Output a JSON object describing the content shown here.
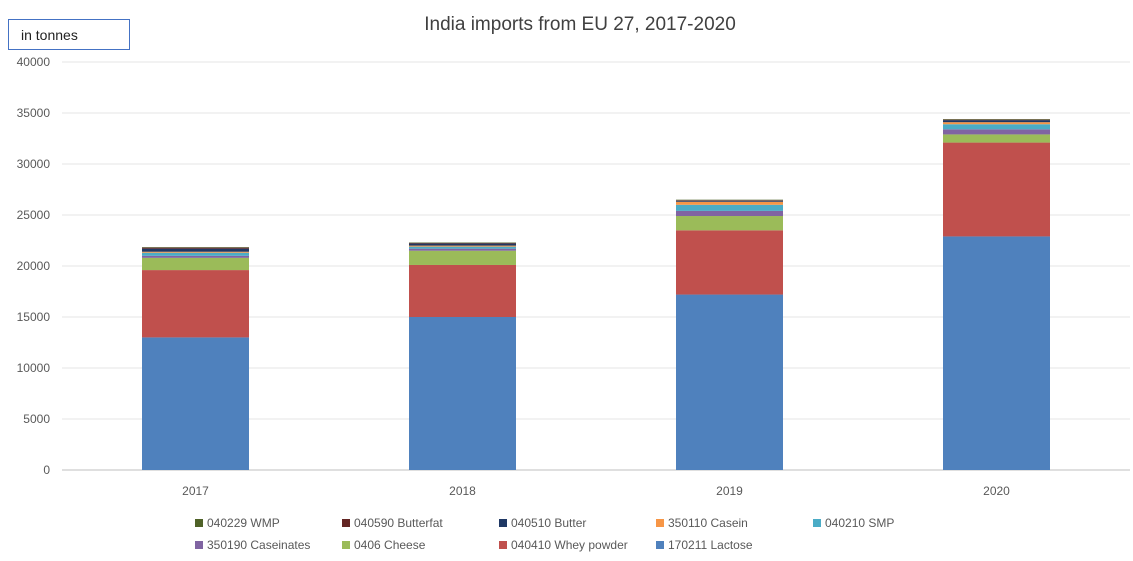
{
  "unit_label": "in tonnes",
  "chart_data": {
    "type": "bar",
    "stacked": true,
    "title": "India imports from EU 27, 2017-2020",
    "xlabel": "",
    "ylabel": "",
    "ylim": [
      0,
      40000
    ],
    "yticks": [
      0,
      5000,
      10000,
      15000,
      20000,
      25000,
      30000,
      35000,
      40000
    ],
    "grid": true,
    "legend_position": "bottom",
    "categories": [
      "2017",
      "2018",
      "2019",
      "2020"
    ],
    "series": [
      {
        "name": "170211 Lactose",
        "color": "#4f81bd",
        "values": [
          13000,
          15000,
          17200,
          22900
        ]
      },
      {
        "name": "040410 Whey powder",
        "color": "#c0504d",
        "values": [
          6600,
          5100,
          6300,
          9200
        ]
      },
      {
        "name": "0406 Cheese",
        "color": "#9bbb59",
        "values": [
          1200,
          1400,
          1400,
          800
        ]
      },
      {
        "name": "350190 Caseinates",
        "color": "#8064a2",
        "values": [
          200,
          200,
          500,
          500
        ]
      },
      {
        "name": "040210 SMP",
        "color": "#4bacc6",
        "values": [
          300,
          200,
          600,
          500
        ]
      },
      {
        "name": "350110 Casein",
        "color": "#f79646",
        "values": [
          100,
          100,
          300,
          200
        ]
      },
      {
        "name": "040510 Butter",
        "color": "#1f3864",
        "values": [
          300,
          200,
          100,
          200
        ]
      },
      {
        "name": "040590 Butterfat",
        "color": "#632523",
        "values": [
          100,
          50,
          50,
          50
        ]
      },
      {
        "name": "040229 WMP",
        "color": "#4f6228",
        "values": [
          50,
          50,
          50,
          50
        ]
      }
    ],
    "legend_rows": [
      [
        "040229 WMP",
        "040590 Butterfat",
        "040510 Butter",
        "350110 Casein",
        "040210 SMP"
      ],
      [
        "350190 Caseinates",
        "0406 Cheese",
        "040410 Whey powder",
        "170211 Lactose"
      ]
    ]
  }
}
